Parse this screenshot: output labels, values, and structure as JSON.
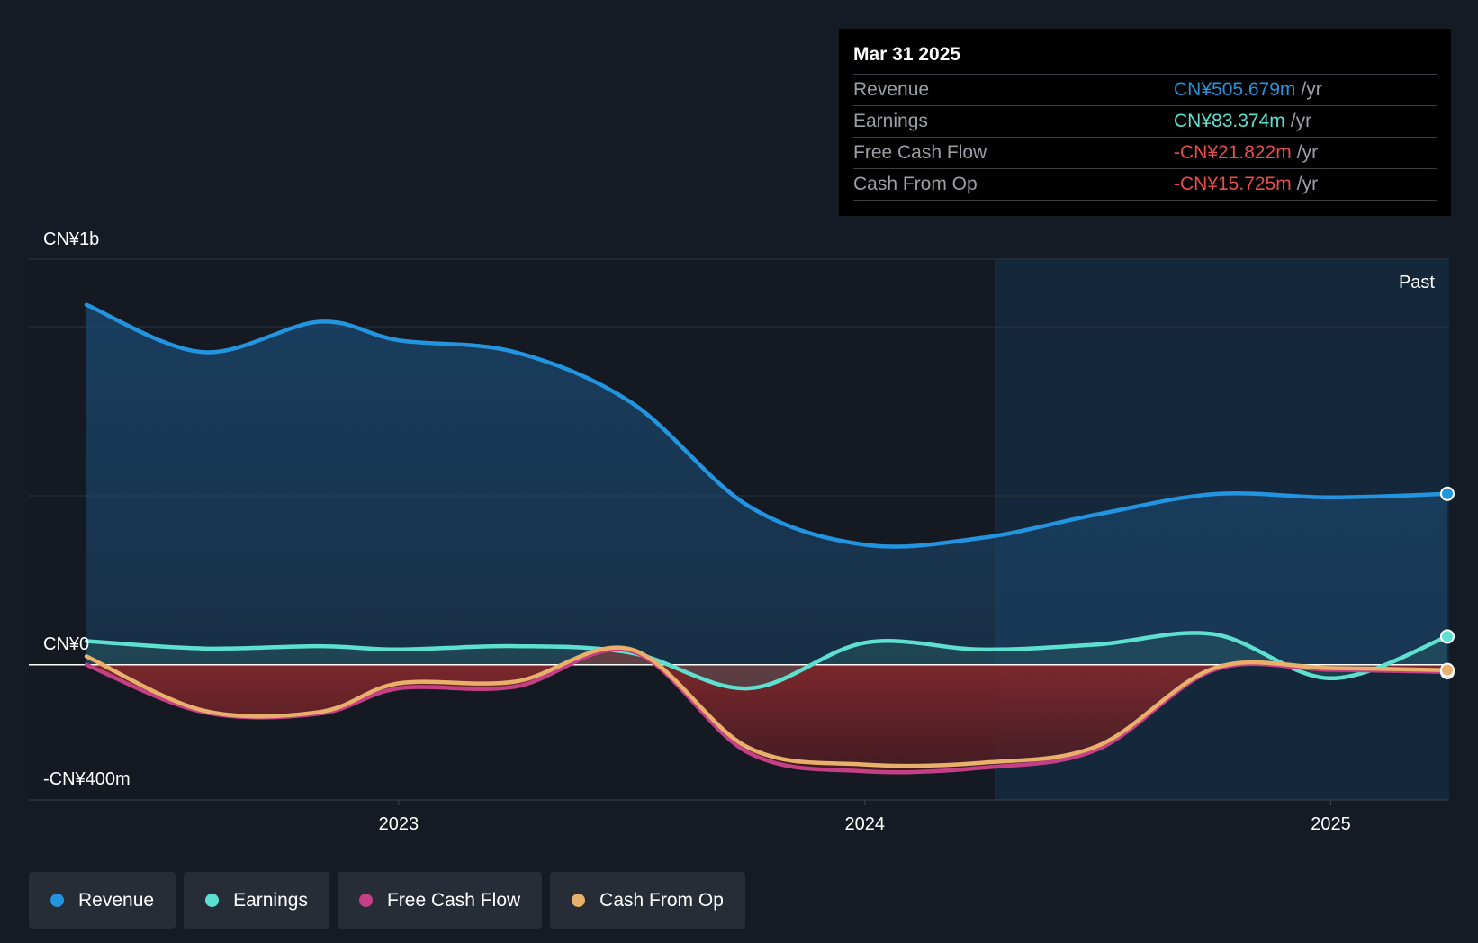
{
  "chart_data": {
    "type": "line",
    "title": "",
    "x": [
      2022.33,
      2022.58,
      2022.83,
      2023.0,
      2023.25,
      2023.5,
      2023.75,
      2024.0,
      2024.25,
      2024.5,
      2024.75,
      2025.0,
      2025.25
    ],
    "series": [
      {
        "name": "Revenue",
        "color": "#2394df",
        "values": [
          1065,
          925,
          1015,
          960,
          925,
          775,
          470,
          355,
          375,
          445,
          505,
          495,
          505.679
        ]
      },
      {
        "name": "Earnings",
        "color": "#5ee0d0",
        "values": [
          70,
          48,
          55,
          45,
          55,
          35,
          -70,
          65,
          45,
          60,
          90,
          -40,
          83.374
        ]
      },
      {
        "name": "Free Cash Flow",
        "color": "#c43f85",
        "values": [
          0,
          -140,
          -145,
          -70,
          -65,
          40,
          -260,
          -315,
          -305,
          -250,
          -15,
          -15,
          -21.822
        ]
      },
      {
        "name": "Cash From Op",
        "color": "#e8b06a",
        "values": [
          25,
          -135,
          -140,
          -55,
          -50,
          45,
          -245,
          -295,
          -290,
          -240,
          -10,
          -10,
          -15.725
        ]
      }
    ],
    "yaxis": {
      "min": -400,
      "max": 1200,
      "labels": [
        "CN¥1b",
        "CN¥0",
        "-CN¥400m"
      ]
    },
    "xaxis": {
      "ticks": [
        "2023",
        "2024",
        "2025"
      ]
    },
    "past_label": "Past",
    "legend": [
      "Revenue",
      "Earnings",
      "Free Cash Flow",
      "Cash From Op"
    ]
  },
  "tooltip": {
    "date": "Mar 31 2025",
    "rows": [
      {
        "label": "Revenue",
        "value": "CN¥505.679m",
        "unit": "/yr",
        "color": "#2394df"
      },
      {
        "label": "Earnings",
        "value": "CN¥83.374m",
        "unit": "/yr",
        "color": "#5ee0d0"
      },
      {
        "label": "Free Cash Flow",
        "value": "-CN¥21.822m",
        "unit": "/yr",
        "color": "#e84d4d"
      },
      {
        "label": "Cash From Op",
        "value": "-CN¥15.725m",
        "unit": "/yr",
        "color": "#e84d4d"
      }
    ]
  },
  "legend_items": [
    {
      "label": "Revenue",
      "color": "#2394df"
    },
    {
      "label": "Earnings",
      "color": "#5ee0d0"
    },
    {
      "label": "Free Cash Flow",
      "color": "#c43f85"
    },
    {
      "label": "Cash From Op",
      "color": "#e8b06a"
    }
  ]
}
